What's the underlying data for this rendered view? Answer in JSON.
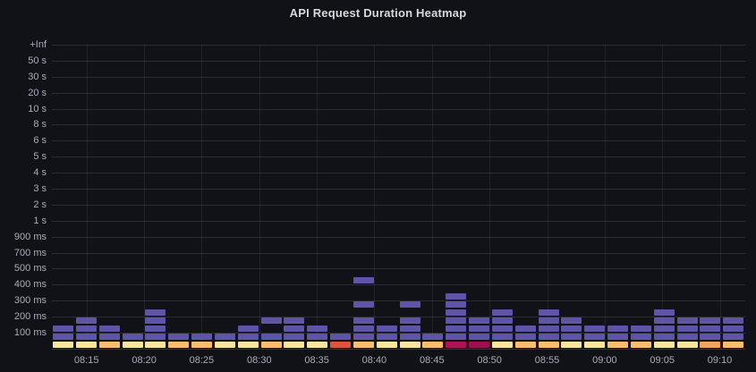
{
  "panel": {
    "title": "API Request Duration Heatmap"
  },
  "chart_data": {
    "type": "heatmap",
    "title": "API Request Duration Heatmap",
    "y_axis": {
      "bucket_labels_top_to_bottom": [
        "+Inf",
        "50 s",
        "30 s",
        "20 s",
        "10 s",
        "8 s",
        "6 s",
        "5 s",
        "4 s",
        "3 s",
        "2 s",
        "1 s",
        "900 ms",
        "700 ms",
        "500 ms",
        "400 ms",
        "300 ms",
        "200 ms",
        "100 ms"
      ],
      "grid": true
    },
    "x_axis": {
      "tick_labels": [
        "08:15",
        "08:20",
        "08:25",
        "08:30",
        "08:35",
        "08:40",
        "08:45",
        "08:50",
        "08:55",
        "09:00",
        "09:05",
        "09:10"
      ],
      "bucket_minutes": 2,
      "grid": true
    },
    "legend": "none",
    "palette": {
      "purple": "#5E55A8",
      "pale_yellow": "#FBE3A0",
      "orange": "#F8BE6C",
      "dark_orange": "#F0A55C",
      "red_orange": "#E0523E",
      "crimson": "#B11254",
      "crimson_dark": "#A10D4E"
    },
    "cell_value_semantics": "bottom row = highest request count (yellow/orange/red scale), purple cells = lower counts; level 0 is bottom bucket, higher levels are longer durations (one level per half label interval)",
    "columns": [
      {
        "time": "08:12",
        "bottom_color": "pale_yellow",
        "purple_levels": [
          1,
          2
        ]
      },
      {
        "time": "08:14",
        "bottom_color": "pale_yellow",
        "purple_levels": [
          1,
          2,
          3
        ]
      },
      {
        "time": "08:16",
        "bottom_color": "orange",
        "purple_levels": [
          1,
          2
        ]
      },
      {
        "time": "08:18",
        "bottom_color": "pale_yellow",
        "purple_levels": [
          1
        ]
      },
      {
        "time": "08:20",
        "bottom_color": "pale_yellow",
        "purple_levels": [
          1,
          2,
          3,
          4
        ]
      },
      {
        "time": "08:22",
        "bottom_color": "orange",
        "purple_levels": [
          1
        ]
      },
      {
        "time": "08:24",
        "bottom_color": "orange",
        "purple_levels": [
          1
        ]
      },
      {
        "time": "08:26",
        "bottom_color": "pale_yellow",
        "purple_levels": [
          1
        ]
      },
      {
        "time": "08:28",
        "bottom_color": "pale_yellow",
        "purple_levels": [
          1,
          2
        ]
      },
      {
        "time": "08:30",
        "bottom_color": "orange",
        "purple_levels": [
          1,
          3
        ]
      },
      {
        "time": "08:32",
        "bottom_color": "pale_yellow",
        "purple_levels": [
          1,
          2,
          3
        ]
      },
      {
        "time": "08:34",
        "bottom_color": "pale_yellow",
        "purple_levels": [
          1,
          2
        ]
      },
      {
        "time": "08:36",
        "bottom_color": "red_orange",
        "purple_levels": [
          1
        ]
      },
      {
        "time": "08:38",
        "bottom_color": "orange",
        "purple_levels": [
          1,
          2,
          3,
          5,
          8
        ]
      },
      {
        "time": "08:40",
        "bottom_color": "pale_yellow",
        "purple_levels": [
          1,
          2
        ]
      },
      {
        "time": "08:42",
        "bottom_color": "pale_yellow",
        "purple_levels": [
          1,
          2,
          3,
          5
        ]
      },
      {
        "time": "08:44",
        "bottom_color": "orange",
        "purple_levels": [
          1
        ]
      },
      {
        "time": "08:46",
        "bottom_color": "crimson",
        "purple_levels": [
          1,
          2,
          3,
          4,
          5,
          6
        ]
      },
      {
        "time": "08:48",
        "bottom_color": "crimson_dark",
        "purple_levels": [
          1,
          2,
          3
        ]
      },
      {
        "time": "08:50",
        "bottom_color": "pale_yellow",
        "purple_levels": [
          1,
          2,
          3,
          4
        ]
      },
      {
        "time": "08:52",
        "bottom_color": "orange",
        "purple_levels": [
          1,
          2
        ]
      },
      {
        "time": "08:54",
        "bottom_color": "orange",
        "purple_levels": [
          1,
          2,
          3,
          4
        ]
      },
      {
        "time": "08:56",
        "bottom_color": "pale_yellow",
        "purple_levels": [
          1,
          2,
          3
        ]
      },
      {
        "time": "08:58",
        "bottom_color": "pale_yellow",
        "purple_levels": [
          1,
          2
        ]
      },
      {
        "time": "09:00",
        "bottom_color": "orange",
        "purple_levels": [
          1,
          2
        ]
      },
      {
        "time": "09:02",
        "bottom_color": "orange",
        "purple_levels": [
          1,
          2
        ]
      },
      {
        "time": "09:04",
        "bottom_color": "pale_yellow",
        "purple_levels": [
          1,
          2,
          3,
          4
        ]
      },
      {
        "time": "09:06",
        "bottom_color": "pale_yellow",
        "purple_levels": [
          1,
          2,
          3
        ]
      },
      {
        "time": "09:08",
        "bottom_color": "dark_orange",
        "purple_levels": [
          1,
          2,
          3
        ]
      },
      {
        "time": "09:10",
        "bottom_color": "orange",
        "purple_levels": [
          1,
          2,
          3
        ]
      }
    ]
  }
}
